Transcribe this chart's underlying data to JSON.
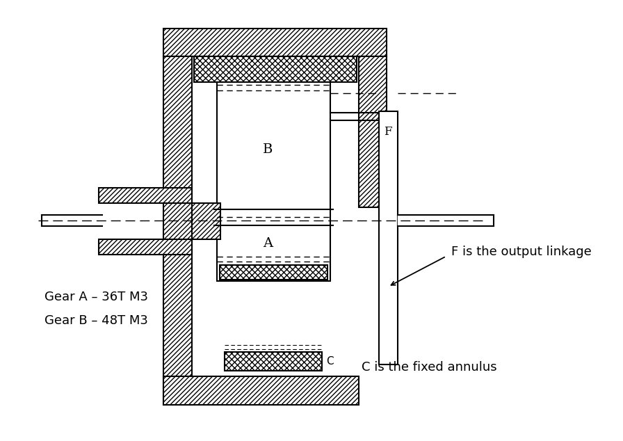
{
  "bg_color": "#ffffff",
  "line_color": "#000000",
  "annotations": {
    "gear_a": "Gear A – 36T M3",
    "gear_b": "Gear B – 48T M3",
    "f_label": "F is the output linkage",
    "c_label": "C is the fixed annulus",
    "b_letter": "B",
    "a_letter": "A",
    "f_letter": "F",
    "c_letter": "C"
  },
  "figsize": [
    8.96,
    6.34
  ],
  "dpi": 100
}
